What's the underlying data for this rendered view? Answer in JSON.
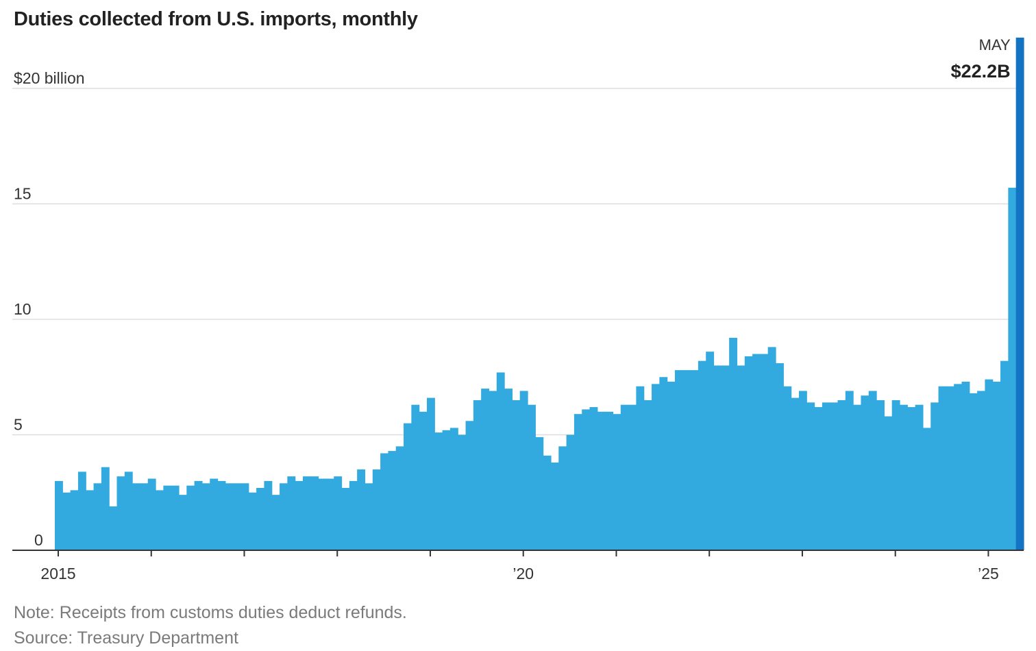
{
  "title": "Duties collected from U.S. imports, monthly",
  "note": "Note: Receipts from customs duties deduct refunds.",
  "source": "Source: Treasury Department",
  "colors": {
    "bar": "#33aadf",
    "highlight": "#1474c4",
    "grid": "#dddddd",
    "axis": "#333333"
  },
  "chart_data": {
    "type": "bar",
    "x_start": "2015-01",
    "x_end": "2025-05",
    "ylim": [
      0,
      22.2
    ],
    "y_ticks": [
      {
        "value": 20,
        "label": "$20 billion"
      },
      {
        "value": 15,
        "label": "15"
      },
      {
        "value": 10,
        "label": "10"
      },
      {
        "value": 5,
        "label": "5"
      },
      {
        "value": 0,
        "label": "0"
      }
    ],
    "x_tick_labels": [
      {
        "year": 2015,
        "label": "2015"
      },
      {
        "year": 2020,
        "label": "’20"
      },
      {
        "year": 2025,
        "label": "’25"
      }
    ],
    "callout": {
      "month": "MAY",
      "value": "$22.2B"
    },
    "values": [
      3.0,
      2.5,
      2.6,
      3.4,
      2.6,
      2.9,
      3.6,
      1.9,
      3.2,
      3.4,
      2.9,
      2.9,
      3.1,
      2.6,
      2.8,
      2.8,
      2.4,
      2.8,
      3.0,
      2.9,
      3.1,
      3.0,
      2.9,
      2.9,
      2.9,
      2.5,
      2.7,
      3.0,
      2.4,
      2.9,
      3.2,
      3.0,
      3.2,
      3.2,
      3.1,
      3.1,
      3.2,
      2.7,
      3.0,
      3.5,
      2.9,
      3.5,
      4.2,
      4.3,
      4.5,
      5.5,
      6.3,
      6.0,
      6.6,
      5.1,
      5.2,
      5.3,
      5.0,
      5.6,
      6.5,
      7.0,
      6.9,
      7.7,
      7.0,
      6.5,
      6.9,
      6.3,
      4.9,
      4.1,
      3.8,
      4.5,
      5.0,
      5.9,
      6.1,
      6.2,
      6.0,
      6.0,
      5.9,
      6.3,
      6.3,
      7.1,
      6.5,
      7.2,
      7.5,
      7.3,
      7.8,
      7.8,
      7.8,
      8.2,
      8.6,
      8.0,
      8.0,
      9.2,
      8.0,
      8.4,
      8.5,
      8.5,
      8.8,
      8.1,
      7.1,
      6.6,
      6.9,
      6.4,
      6.2,
      6.4,
      6.4,
      6.5,
      6.9,
      6.3,
      6.7,
      6.9,
      6.5,
      5.8,
      6.5,
      6.3,
      6.2,
      6.3,
      5.3,
      6.4,
      7.1,
      7.1,
      7.2,
      7.3,
      6.8,
      6.9,
      7.4,
      7.3,
      8.2,
      15.7,
      22.2
    ]
  }
}
